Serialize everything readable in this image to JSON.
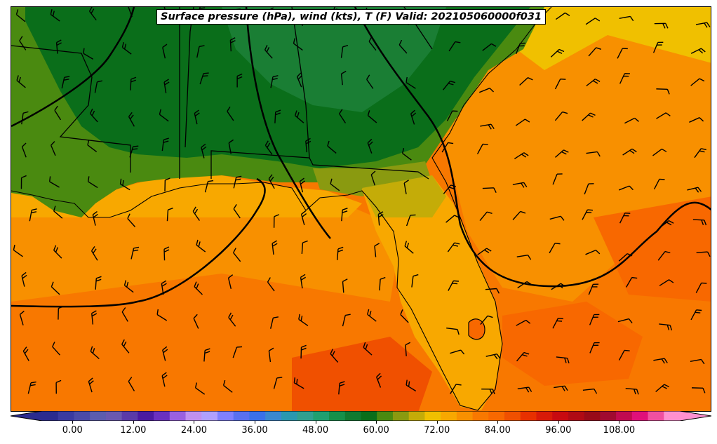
{
  "title": "Surface pressure (hPa), wind (kts), T (F) Valid: 202105060000f031",
  "colorbar": {
    "ticks": [
      "0.00",
      "12.00",
      "24.00",
      "36.00",
      "48.00",
      "60.00",
      "72.00",
      "84.00",
      "96.00",
      "108.00"
    ],
    "min": -6,
    "max": 120,
    "step": 3,
    "colors": [
      "#2b2b8f",
      "#3a3aa0",
      "#4a4aa8",
      "#5c5cae",
      "#6a58b0",
      "#5a3aa8",
      "#4a1aa0",
      "#6a30c0",
      "#9a60e0",
      "#c090f0",
      "#b0a0ff",
      "#8080ff",
      "#5a70f0",
      "#3a70e8",
      "#3a88d0",
      "#2a98b0",
      "#30a090",
      "#20a070",
      "#15904a",
      "#107a30",
      "#0a6e1a",
      "#4a8a10",
      "#8a9a10",
      "#c4ac08",
      "#f0c000",
      "#f8a800",
      "#f89000",
      "#f87800",
      "#f86800",
      "#f05000",
      "#e83000",
      "#d81a08",
      "#c80a10",
      "#b00a14",
      "#980a18",
      "#a00a30",
      "#c00a50",
      "#e0107a",
      "#f050a0",
      "#ff90d0"
    ]
  },
  "map": {
    "region": "Southeastern United States, Gulf of Mexico, Florida",
    "background_color": "#f87800",
    "land_colors": [
      "#0a6e1a",
      "#4a8a10",
      "#8a9a10",
      "#c4ac08",
      "#f0c000",
      "#f8a800"
    ],
    "ocean_colors": [
      "#f89000",
      "#f87800",
      "#f86800",
      "#f05000"
    ]
  }
}
